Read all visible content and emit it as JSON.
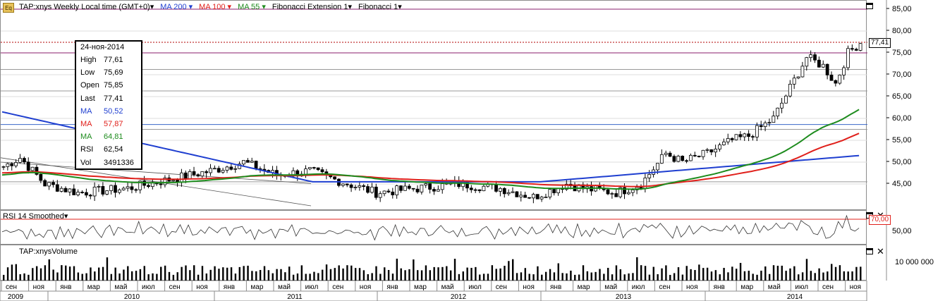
{
  "legend": {
    "symbol": "TAP:xnys Weekly Local time (GMT+0)",
    "ma200": "MA 200",
    "ma100": "MA 100",
    "ma55": "MA 55",
    "fib_ext": "Fibonacci Extension 1",
    "fib": "Fibonacci 1",
    "dropdown_glyph": "▾"
  },
  "icons": {
    "eq": "Eq",
    "close": "✕"
  },
  "colors": {
    "ma200": "#1f3fd0",
    "ma100": "#e0201b",
    "ma55": "#1e8c1e",
    "candle": "#000000",
    "fib": "#8a1c6e",
    "grid": "#c8c8c8"
  },
  "info_box": {
    "date": "24-ноя-2014",
    "rows": [
      {
        "key": "High",
        "value": "77,61",
        "color": "#000000"
      },
      {
        "key": "Low",
        "value": "75,69",
        "color": "#000000"
      },
      {
        "key": "Open",
        "value": "75,85",
        "color": "#000000"
      },
      {
        "key": "Last",
        "value": "77,41",
        "color": "#000000"
      },
      {
        "key": "MA",
        "value": "50,52",
        "color": "#1f3fd0"
      },
      {
        "key": "MA",
        "value": "57,87",
        "color": "#e0201b"
      },
      {
        "key": "MA",
        "value": "64,81",
        "color": "#1e8c1e"
      },
      {
        "key": "RSI",
        "value": "62,54",
        "color": "#000000"
      },
      {
        "key": "Vol",
        "value": "3491336",
        "color": "#000000"
      }
    ]
  },
  "price_axis": {
    "ticks": [
      "85,00",
      "80,00",
      "75,00",
      "70,00",
      "65,00",
      "60,00",
      "55,00",
      "50,00",
      "45,00"
    ],
    "last_price": "77,41"
  },
  "rsi_panel": {
    "title": "RSI 14 Smoothed",
    "level_label": "70,00",
    "tick": "50,00"
  },
  "volume_panel": {
    "title": "TAP:xnysVolume",
    "tick": "10 000 000"
  },
  "time_axis": {
    "months": [
      "сен",
      "ноя",
      "янв",
      "мар",
      "май",
      "июл",
      "сен",
      "ноя",
      "янв",
      "мар",
      "май",
      "июл",
      "сен",
      "ноя",
      "янв",
      "мар",
      "май",
      "июл",
      "сен",
      "ноя",
      "янв",
      "мар",
      "май",
      "июл",
      "сен",
      "ноя",
      "янв",
      "мар",
      "май",
      "июл",
      "сен",
      "ноя"
    ],
    "years": [
      "2009",
      "2010",
      "2011",
      "2012",
      "2013",
      "2014"
    ]
  }
}
